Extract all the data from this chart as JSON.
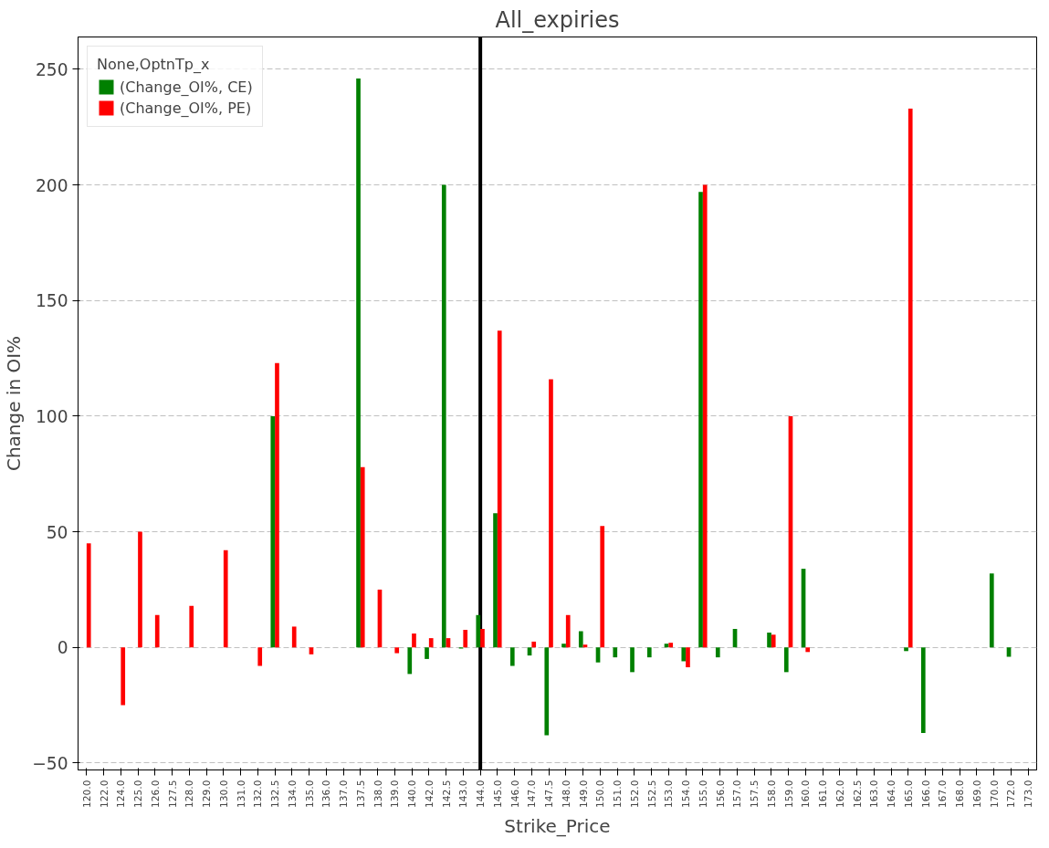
{
  "chart_data": {
    "type": "bar",
    "title": "All_expiries",
    "xlabel": "Strike_Price",
    "ylabel": "Change in OI%",
    "legend_title": "None,OptnTp_x",
    "categories": [
      "120.0",
      "122.0",
      "124.0",
      "125.0",
      "126.0",
      "127.5",
      "128.0",
      "129.0",
      "130.0",
      "131.0",
      "132.0",
      "132.5",
      "134.0",
      "135.0",
      "136.0",
      "137.0",
      "137.5",
      "138.0",
      "139.0",
      "140.0",
      "142.0",
      "142.5",
      "143.0",
      "144.0",
      "145.0",
      "146.0",
      "147.0",
      "147.5",
      "148.0",
      "149.0",
      "150.0",
      "151.0",
      "152.0",
      "152.5",
      "153.0",
      "154.0",
      "155.0",
      "156.0",
      "157.0",
      "157.5",
      "158.0",
      "159.0",
      "160.0",
      "161.0",
      "162.0",
      "162.5",
      "163.0",
      "164.0",
      "165.0",
      "166.0",
      "167.0",
      "168.0",
      "169.0",
      "170.0",
      "172.0",
      "173.0"
    ],
    "series": [
      {
        "name": "(Change_OI%, CE)",
        "color": "#008000",
        "values": [
          null,
          null,
          null,
          null,
          null,
          null,
          null,
          null,
          null,
          null,
          null,
          100,
          null,
          null,
          null,
          null,
          246,
          null,
          null,
          -11.5,
          -5,
          200,
          -0.5,
          14,
          58,
          -8,
          -3.5,
          -38,
          1.6,
          7,
          -6.5,
          -4.3,
          -10.7,
          -4.3,
          1.6,
          -6,
          197,
          -4.3,
          8,
          null,
          6.4,
          -10.7,
          34,
          null,
          null,
          null,
          null,
          null,
          -1.6,
          -37,
          null,
          null,
          null,
          32,
          -4,
          null
        ]
      },
      {
        "name": "(Change_OI%, PE)",
        "color": "#ff0000",
        "values": [
          45,
          null,
          -25,
          50,
          14,
          null,
          18,
          null,
          42,
          null,
          -8,
          123,
          9,
          -3,
          null,
          null,
          78,
          25,
          -2.5,
          6,
          4,
          4,
          7.6,
          8,
          137,
          0,
          2.5,
          116,
          14,
          1.2,
          52.5,
          null,
          null,
          null,
          2,
          -8.6,
          200,
          null,
          null,
          null,
          5.5,
          100,
          -2,
          null,
          null,
          null,
          null,
          null,
          233,
          null,
          null,
          null,
          null,
          null,
          null,
          null
        ]
      }
    ],
    "ylim": [
      -53,
      264
    ],
    "yticks": [
      -50,
      0,
      50,
      100,
      150,
      200,
      250
    ],
    "ref_lines": [
      {
        "axis": "x",
        "value": "144.0",
        "color": "#000000"
      }
    ],
    "grid": "y",
    "legend": "top left"
  }
}
